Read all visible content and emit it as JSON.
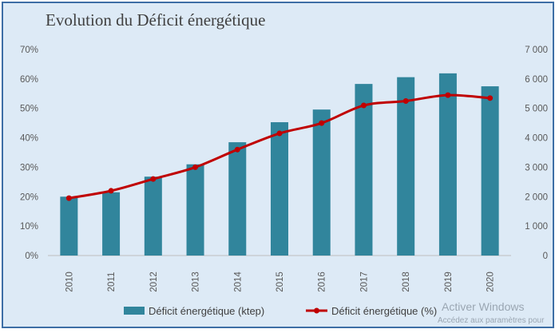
{
  "chart_data": {
    "type": "bar+line",
    "title": "Evolution du Déficit énergétique",
    "categories": [
      "2010",
      "2011",
      "2012",
      "2013",
      "2014",
      "2015",
      "2016",
      "2017",
      "2018",
      "2019",
      "2020"
    ],
    "series": [
      {
        "name": "Déficit énergétique (ktep)",
        "type": "bar",
        "axis": "right",
        "color": "#31859c",
        "values": [
          2000,
          2150,
          2680,
          3100,
          3850,
          4530,
          4960,
          5830,
          6060,
          6190,
          5750
        ]
      },
      {
        "name": "Déficit énergétique (%)",
        "type": "line",
        "axis": "left",
        "color": "#c00000",
        "values": [
          19.5,
          22,
          26,
          30,
          36,
          41.5,
          45,
          51,
          52.5,
          54.5,
          53.5
        ]
      }
    ],
    "y_left": {
      "min": 0,
      "max": 70,
      "step": 10,
      "tick_labels": [
        "0%",
        "10%",
        "20%",
        "30%",
        "40%",
        "50%",
        "60%",
        "70%"
      ]
    },
    "y_right": {
      "min": 0,
      "max": 7000,
      "step": 1000,
      "tick_labels": [
        "0",
        "1 000",
        "2 000",
        "3 000",
        "4 000",
        "5 000",
        "6 000",
        "7 000"
      ]
    },
    "grid": false,
    "legend_position": "bottom"
  },
  "watermark": {
    "line1": "Activer Windows",
    "line2": "Accédez aux paramètres pour"
  }
}
